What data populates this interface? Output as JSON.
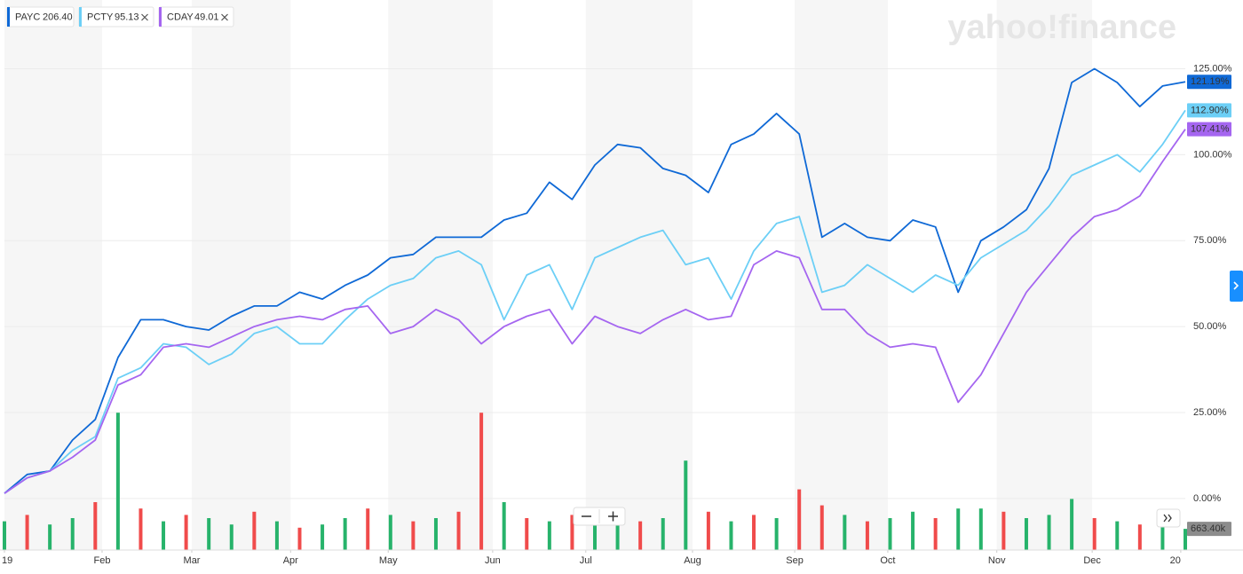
{
  "chart_data": {
    "type": "line",
    "watermark": "yahoo!finance",
    "x": [
      0,
      1,
      2,
      3,
      4,
      5,
      6,
      7,
      8,
      9,
      10,
      11,
      12,
      13,
      14,
      15,
      16,
      17,
      18,
      19,
      20,
      21,
      22,
      23,
      24,
      25,
      26,
      27,
      28,
      29,
      30,
      31,
      32,
      33,
      34,
      35,
      36,
      37,
      38,
      39,
      40,
      41,
      42,
      43,
      44,
      45,
      46,
      47,
      48,
      49,
      50,
      51,
      52
    ],
    "xlim": [
      0,
      52
    ],
    "xticks": [
      {
        "value": 0,
        "label": "19"
      },
      {
        "value": 4.3,
        "label": "Feb"
      },
      {
        "value": 8.25,
        "label": "Mar"
      },
      {
        "value": 12.6,
        "label": "Apr"
      },
      {
        "value": 16.9,
        "label": "May"
      },
      {
        "value": 21.5,
        "label": "Jun"
      },
      {
        "value": 25.6,
        "label": "Jul"
      },
      {
        "value": 30.3,
        "label": "Aug"
      },
      {
        "value": 34.8,
        "label": "Sep"
      },
      {
        "value": 38.9,
        "label": "Oct"
      },
      {
        "value": 43.7,
        "label": "Nov"
      },
      {
        "value": 47.9,
        "label": "Dec"
      },
      {
        "value": 51.8,
        "label": "20"
      }
    ],
    "ylim": [
      -15,
      145
    ],
    "yticks": [
      {
        "value": 0,
        "label": "0.00%"
      },
      {
        "value": 25,
        "label": "25.00%"
      },
      {
        "value": 50,
        "label": "50.00%"
      },
      {
        "value": 75,
        "label": "75.00%"
      },
      {
        "value": 100,
        "label": "100.00%"
      },
      {
        "value": 125,
        "label": "125.00%"
      }
    ],
    "grid": true,
    "series": [
      {
        "name": "PAYC",
        "quote": "206.40",
        "color": "#0f69d6",
        "last_value_label": "121.19%",
        "values": [
          1.5,
          7,
          8,
          17,
          23,
          41,
          52,
          52,
          50,
          49,
          53,
          56,
          56,
          60,
          58,
          62,
          65,
          70,
          71,
          76,
          76,
          76,
          81,
          83,
          92,
          87,
          97,
          103,
          102,
          96,
          94,
          89,
          103,
          106,
          112,
          106,
          76,
          80,
          76,
          75,
          81,
          79,
          60,
          75,
          79,
          84,
          96,
          121,
          125,
          121,
          114,
          120,
          121.19
        ]
      },
      {
        "name": "PCTY",
        "quote": "95.13",
        "color": "#6ccff6",
        "last_value_label": "112.90%",
        "values": [
          1.5,
          6,
          8,
          14,
          18,
          35,
          38,
          45,
          44,
          39,
          42,
          48,
          50,
          45,
          45,
          52,
          58,
          62,
          64,
          70,
          72,
          68,
          52,
          65,
          68,
          55,
          70,
          73,
          76,
          78,
          68,
          70,
          58,
          72,
          80,
          82,
          60,
          62,
          68,
          64,
          60,
          65,
          62,
          70,
          74,
          78,
          85,
          94,
          97,
          100,
          95,
          103,
          112.9
        ]
      },
      {
        "name": "CDAY",
        "quote": "49.01",
        "color": "#a566f0",
        "last_value_label": "107.41%",
        "values": [
          1.5,
          6,
          8,
          12,
          17,
          33,
          36,
          44,
          45,
          44,
          47,
          50,
          52,
          53,
          52,
          55,
          56,
          48,
          50,
          55,
          52,
          45,
          50,
          53,
          55,
          45,
          53,
          50,
          48,
          52,
          55,
          52,
          53,
          68,
          72,
          70,
          55,
          55,
          48,
          44,
          45,
          44,
          28,
          36,
          48,
          60,
          68,
          76,
          82,
          84,
          88,
          98,
          107.41
        ]
      }
    ],
    "volume": {
      "ylim": [
        0,
        5000
      ],
      "up_color": "#27b36b",
      "down_color": "#f04b4b",
      "last_value_label": "663.40k",
      "values": [
        900,
        1100,
        800,
        1000,
        1500,
        4300,
        1300,
        900,
        1100,
        1000,
        800,
        1200,
        900,
        700,
        800,
        1000,
        1300,
        1100,
        900,
        1000,
        1200,
        4300,
        1500,
        1000,
        900,
        1100,
        1000,
        800,
        900,
        1000,
        2800,
        1200,
        900,
        1100,
        1000,
        1900,
        1400,
        1100,
        900,
        1000,
        1200,
        1000,
        1300,
        1300,
        1200,
        1000,
        1100,
        1600,
        1000,
        900,
        800,
        1000,
        663.4
      ],
      "direction": [
        "up",
        "down",
        "up",
        "up",
        "down",
        "up",
        "down",
        "up",
        "down",
        "up",
        "up",
        "down",
        "up",
        "down",
        "up",
        "up",
        "down",
        "up",
        "down",
        "up",
        "down",
        "down",
        "up",
        "down",
        "up",
        "down",
        "up",
        "up",
        "down",
        "up",
        "up",
        "down",
        "up",
        "down",
        "up",
        "down",
        "down",
        "up",
        "down",
        "up",
        "up",
        "down",
        "up",
        "up",
        "down",
        "up",
        "up",
        "up",
        "down",
        "up",
        "down",
        "up",
        "up"
      ]
    }
  }
}
